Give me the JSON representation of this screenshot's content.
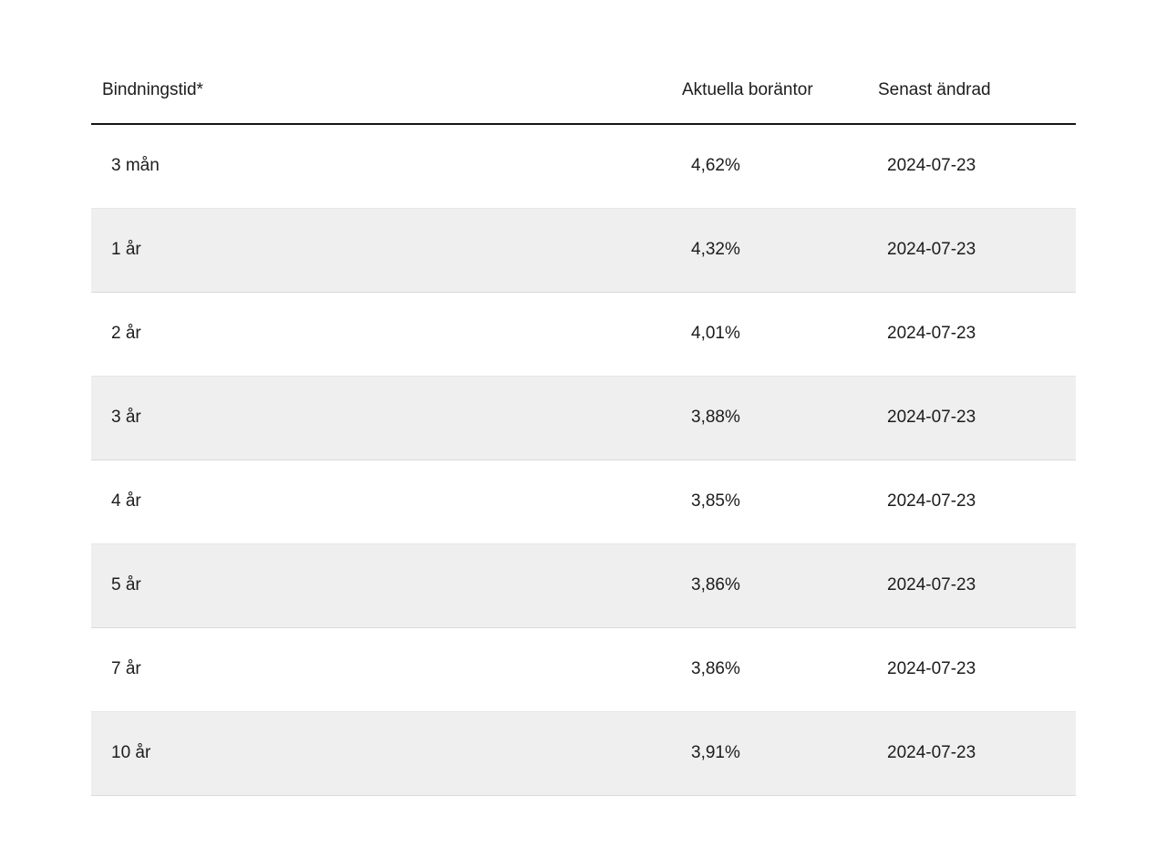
{
  "table": {
    "columns": [
      {
        "label": "Bindningstid*"
      },
      {
        "label": "Aktuella boräntor"
      },
      {
        "label": "Senast ändrad"
      }
    ],
    "rows": [
      {
        "term": "3 mån",
        "rate": "4,62%",
        "changed": "2024-07-23"
      },
      {
        "term": "1 år",
        "rate": "4,32%",
        "changed": "2024-07-23"
      },
      {
        "term": "2 år",
        "rate": "4,01%",
        "changed": "2024-07-23"
      },
      {
        "term": "3 år",
        "rate": "3,88%",
        "changed": "2024-07-23"
      },
      {
        "term": "4 år",
        "rate": "3,85%",
        "changed": "2024-07-23"
      },
      {
        "term": "5 år",
        "rate": "3,86%",
        "changed": "2024-07-23"
      },
      {
        "term": "7 år",
        "rate": "3,86%",
        "changed": "2024-07-23"
      },
      {
        "term": "10 år",
        "rate": "3,91%",
        "changed": "2024-07-23"
      }
    ],
    "row_keys": [
      "term",
      "rate",
      "changed"
    ],
    "colors": {
      "text": "#1c1c1c",
      "header_rule": "#151515",
      "alt_row_bg": "#efefef",
      "alt_row_border_top": "#e6e6e6",
      "alt_row_border_bottom": "#dadada",
      "page_bg": "#ffffff"
    }
  }
}
